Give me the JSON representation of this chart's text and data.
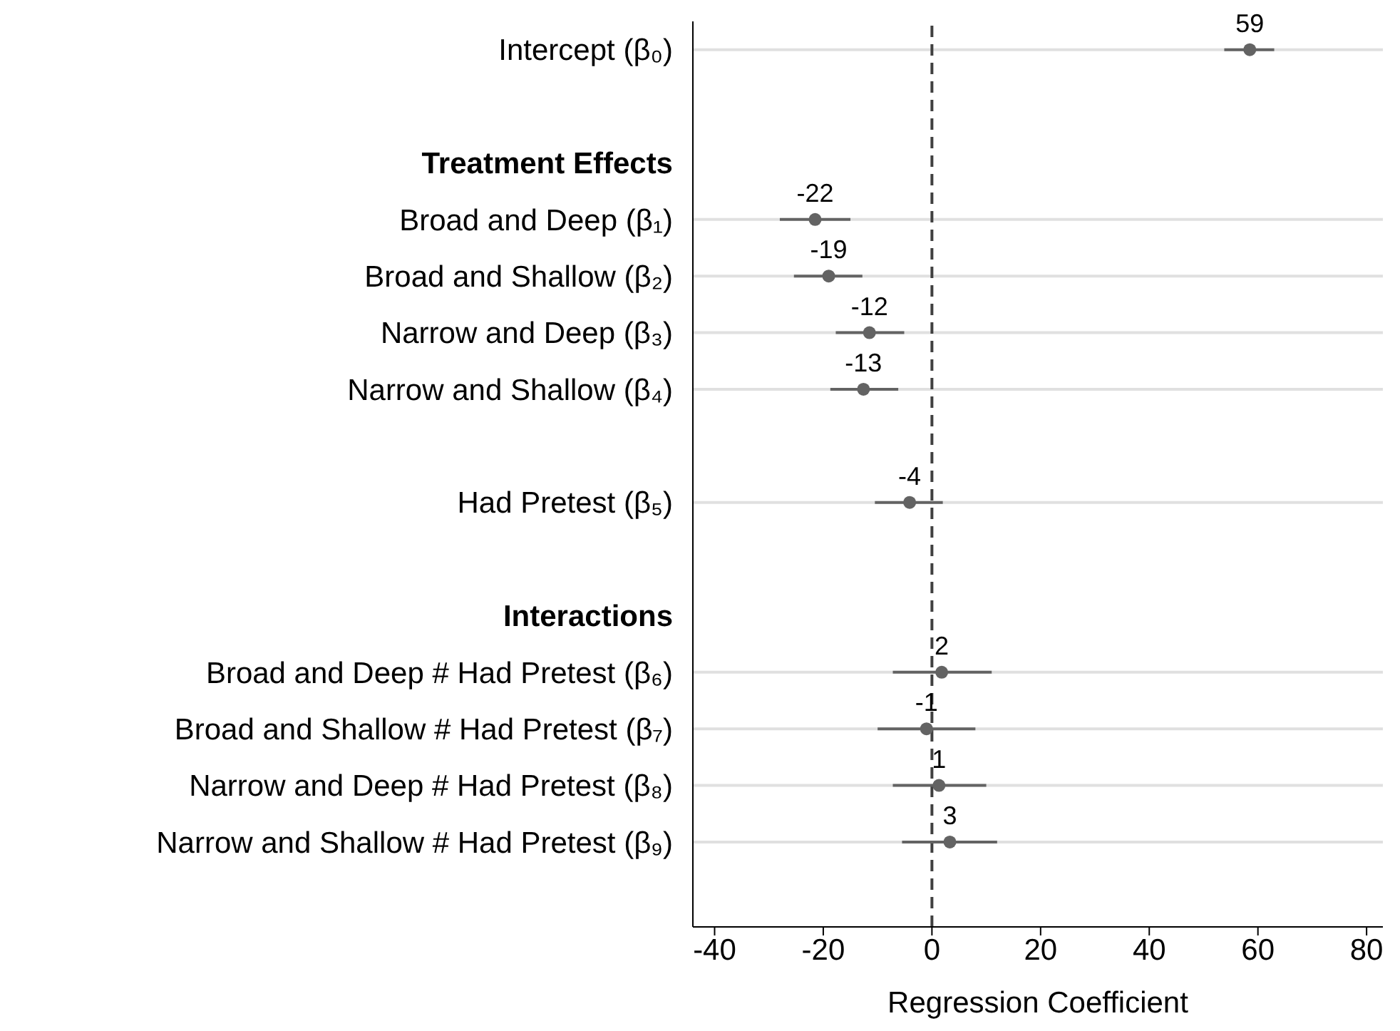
{
  "chart_data": {
    "type": "scatter",
    "orientation": "horizontal",
    "xlabel": "Regression Coefficient",
    "categories": [
      "Intercept (β₀)",
      null,
      "Treatment Effects",
      "Broad and Deep (β₁)",
      "Broad and Shallow (β₂)",
      "Narrow and Deep (β₃)",
      "Narrow and Shallow (β₄)",
      null,
      "Had Pretest (β₅)",
      null,
      "Interactions",
      "Broad and Deep # Had Pretest (β₆)",
      "Broad and Shallow # Had Pretest (β₇)",
      "Narrow and Deep # Had Pretest (β₈)",
      "Narrow and Shallow # Had Pretest (β₉)",
      null
    ],
    "series": [
      {
        "color": "#636363",
        "values": [
          58.5,
          null,
          null,
          -21.5,
          -19,
          -11.5,
          -12.6,
          null,
          -4.1,
          null,
          null,
          1.8,
          -1.0,
          1.3,
          3.3,
          null
        ],
        "errors": [
          [
            53.8,
            63
          ],
          null,
          null,
          [
            -28,
            -15
          ],
          [
            -25.4,
            -12.8
          ],
          [
            -17.7,
            -5.1
          ],
          [
            -18.7,
            -6.2
          ],
          null,
          [
            -10.5,
            2
          ],
          null,
          null,
          [
            -7.2,
            11
          ],
          [
            -10,
            8
          ],
          [
            -7.2,
            10
          ],
          [
            -5.5,
            12
          ],
          null
        ],
        "value_labels": [
          "59",
          null,
          null,
          "-22",
          "-19",
          "-12",
          "-13",
          null,
          "-4",
          null,
          null,
          "2",
          "-1",
          "1",
          "3",
          null
        ]
      }
    ],
    "xlim": [
      -44,
      83
    ],
    "xticks": [
      -40,
      -20,
      0,
      20,
      40,
      60,
      80
    ],
    "ref_lines": [
      {
        "axis": "x",
        "value": 0,
        "color": "#404040",
        "line_style": "dashed"
      }
    ],
    "grid": "y",
    "marker": "circle"
  }
}
